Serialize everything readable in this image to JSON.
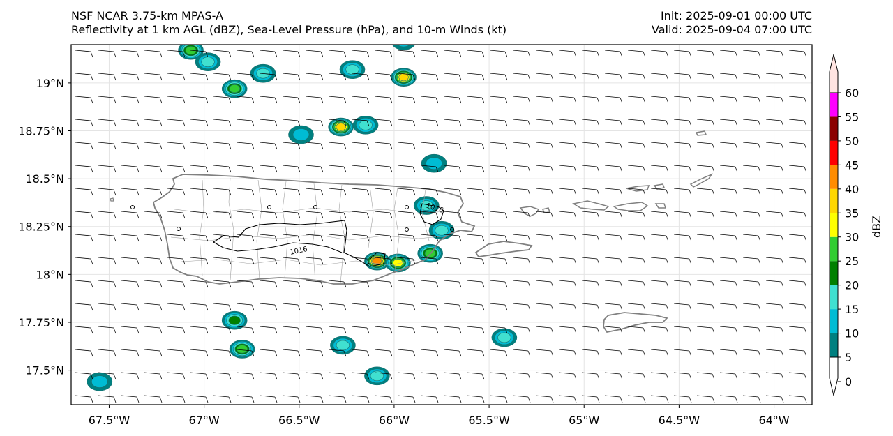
{
  "header": {
    "left_line1": "NSF NCAR 3.75-km MPAS-A",
    "left_line2": "Reflectivity at 1 km AGL (dBZ), Sea-Level Pressure (hPa), and 10-m Winds (kt)",
    "right_line1": "Init: 2025-09-01 00:00 UTC",
    "right_line2": "Valid: 2025-09-04 07:00 UTC"
  },
  "map": {
    "lon_range": [
      -67.7,
      -63.8
    ],
    "lat_range": [
      17.32,
      19.2
    ],
    "lon_ticks": [
      -67.5,
      -67.0,
      -66.5,
      -66.0,
      -65.5,
      -65.0,
      -64.5,
      -64.0
    ],
    "lon_tick_labels": [
      "67.5°W",
      "67°W",
      "66.5°W",
      "66°W",
      "65.5°W",
      "65°W",
      "64.5°W",
      "64°W"
    ],
    "lat_ticks": [
      17.5,
      17.75,
      18.0,
      18.25,
      18.5,
      18.75,
      19.0
    ],
    "lat_tick_labels": [
      "17.5°N",
      "17.75°N",
      "18°N",
      "18.25°N",
      "18.5°N",
      "18.75°N",
      "19°N"
    ],
    "grid": true,
    "coastline_color": "#808080",
    "isobar_color": "#000000",
    "isobar_labels": [
      "1016",
      "1016"
    ],
    "wind_barb_color": "#000000",
    "wind_barbs": "light easterly winds across domain, roughly 5-10 kt"
  },
  "colorbar": {
    "label": "dBZ",
    "levels": [
      0,
      5,
      10,
      15,
      20,
      25,
      30,
      35,
      40,
      45,
      50,
      55,
      60
    ],
    "tick_labels": [
      "0",
      "5",
      "10",
      "15",
      "20",
      "25",
      "30",
      "35",
      "40",
      "45",
      "50",
      "55",
      "60"
    ],
    "colors": [
      "#ffffff",
      "#008080",
      "#00bcd4",
      "#40e0d0",
      "#008000",
      "#32cd32",
      "#ffff00",
      "#ffd700",
      "#ff8c00",
      "#ff0000",
      "#8b0000",
      "#ff00ff",
      "#ffe4e1"
    ],
    "extend": "both"
  },
  "reflectivity_cells": [
    {
      "lon": -67.07,
      "lat": 19.17,
      "peak": 25
    },
    {
      "lon": -66.98,
      "lat": 19.11,
      "peak": 15
    },
    {
      "lon": -66.84,
      "lat": 18.97,
      "peak": 25
    },
    {
      "lon": -66.69,
      "lat": 19.05,
      "peak": 15
    },
    {
      "lon": -66.28,
      "lat": 18.77,
      "peak": 35
    },
    {
      "lon": -66.15,
      "lat": 18.78,
      "peak": 15
    },
    {
      "lon": -66.22,
      "lat": 19.07,
      "peak": 15
    },
    {
      "lon": -65.95,
      "lat": 19.03,
      "peak": 35
    },
    {
      "lon": -66.49,
      "lat": 18.73,
      "peak": 10
    },
    {
      "lon": -65.79,
      "lat": 18.58,
      "peak": 10
    },
    {
      "lon": -65.83,
      "lat": 18.36,
      "peak": 15
    },
    {
      "lon": -65.75,
      "lat": 18.23,
      "peak": 15
    },
    {
      "lon": -66.09,
      "lat": 18.07,
      "peak": 40
    },
    {
      "lon": -65.98,
      "lat": 18.06,
      "peak": 30
    },
    {
      "lon": -65.81,
      "lat": 18.11,
      "peak": 25
    },
    {
      "lon": -66.84,
      "lat": 17.76,
      "peak": 20
    },
    {
      "lon": -66.8,
      "lat": 17.61,
      "peak": 25
    },
    {
      "lon": -66.27,
      "lat": 17.63,
      "peak": 15
    },
    {
      "lon": -66.09,
      "lat": 17.47,
      "peak": 15
    },
    {
      "lon": -65.42,
      "lat": 17.67,
      "peak": 15
    },
    {
      "lon": -67.55,
      "lat": 17.44,
      "peak": 10
    },
    {
      "lon": -65.95,
      "lat": 19.22,
      "peak": 10
    }
  ]
}
